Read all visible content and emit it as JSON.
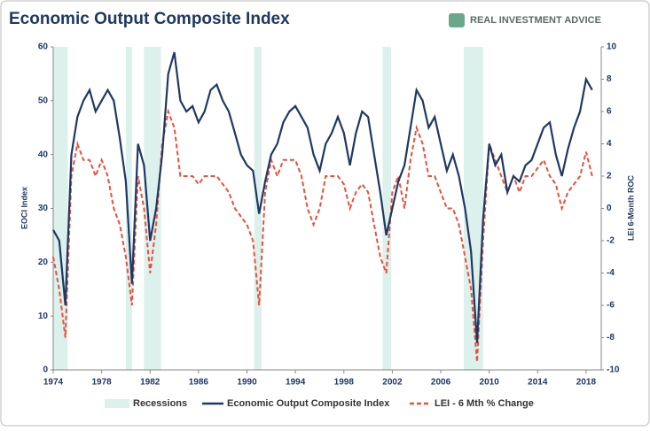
{
  "logo": "REAL INVESTMENT ADVICE",
  "chart_data": {
    "type": "line",
    "title": "Economic Output Composite Index",
    "ylabel": "EOCI Index",
    "y2label": "LEI 6-Month ROC",
    "xlim": [
      1974,
      2019.25
    ],
    "xticks": [
      1974,
      1978,
      1982,
      1986,
      1990,
      1994,
      1998,
      2002,
      2006,
      2010,
      2014,
      2018
    ],
    "ylim": [
      0,
      60
    ],
    "yticks": [
      0,
      10,
      20,
      30,
      40,
      50,
      60
    ],
    "y2lim": [
      -10,
      10
    ],
    "y2ticks": [
      -10,
      -8,
      -6,
      -4,
      -2,
      0,
      2,
      4,
      6,
      8,
      10
    ],
    "bands": {
      "name": "Recessions",
      "color": "#dcf0ec",
      "ranges": [
        [
          1974.0,
          1975.2
        ],
        [
          1980.0,
          1980.5
        ],
        [
          1981.5,
          1982.9
        ],
        [
          1990.6,
          1991.2
        ],
        [
          2001.2,
          2001.9
        ],
        [
          2007.9,
          2009.5
        ]
      ]
    },
    "x": [
      1974,
      1974.5,
      1975,
      1975.5,
      1976,
      1976.5,
      1977,
      1977.5,
      1978,
      1978.5,
      1979,
      1979.5,
      1980,
      1980.5,
      1981,
      1981.5,
      1982,
      1982.5,
      1983,
      1983.5,
      1984,
      1984.5,
      1985,
      1985.5,
      1986,
      1986.5,
      1987,
      1987.5,
      1988,
      1988.5,
      1989,
      1989.5,
      1990,
      1990.5,
      1991,
      1991.5,
      1992,
      1992.5,
      1993,
      1993.5,
      1994,
      1994.5,
      1995,
      1995.5,
      1996,
      1996.5,
      1997,
      1997.5,
      1998,
      1998.5,
      1999,
      1999.5,
      2000,
      2000.5,
      2001,
      2001.5,
      2002,
      2002.5,
      2003,
      2003.5,
      2004,
      2004.5,
      2005,
      2005.5,
      2006,
      2006.5,
      2007,
      2007.5,
      2008,
      2008.5,
      2009,
      2009.5,
      2010,
      2010.5,
      2011,
      2011.5,
      2012,
      2012.5,
      2013,
      2013.5,
      2014,
      2014.5,
      2015,
      2015.5,
      2016,
      2016.5,
      2017,
      2017.5,
      2018,
      2018.5
    ],
    "series": [
      {
        "name": "Economic Output Composite Index",
        "color": "#1f3864",
        "dash": false,
        "values": [
          26,
          24,
          12,
          40,
          47,
          50,
          52,
          48,
          50,
          52,
          50,
          43,
          35,
          16,
          42,
          38,
          24,
          30,
          40,
          55,
          59,
          50,
          48,
          49,
          46,
          48,
          52,
          53,
          50,
          48,
          44,
          40,
          38,
          37,
          29,
          35,
          40,
          42,
          46,
          48,
          49,
          47,
          45,
          40,
          37,
          42,
          44,
          47,
          44,
          38,
          44,
          48,
          47,
          40,
          33,
          25,
          30,
          35,
          38,
          45,
          52,
          50,
          45,
          47,
          42,
          37,
          40,
          36,
          30,
          22,
          5,
          28,
          42,
          38,
          40,
          33,
          36,
          35,
          38,
          39,
          42,
          45,
          46,
          40,
          36,
          41,
          45,
          48,
          54,
          52
        ]
      },
      {
        "name": "LEI - 6 Mth % Change",
        "color": "#e8503c",
        "dash": true,
        "axis": "y2",
        "values": [
          -3,
          -5,
          -8,
          2,
          4,
          3,
          3,
          2,
          3,
          2,
          0,
          -1,
          -3,
          -6,
          2,
          0,
          -4,
          -1,
          4,
          6,
          5,
          2,
          2,
          2,
          1.5,
          2,
          2,
          2,
          1.5,
          1,
          0,
          -0.5,
          -1,
          -2,
          -6,
          1,
          3,
          2,
          3,
          3,
          3,
          2,
          0,
          -1,
          0,
          2,
          2,
          2,
          1.5,
          0,
          1,
          1.5,
          1,
          -1,
          -3,
          -4,
          1,
          2,
          0,
          3,
          5,
          4,
          2,
          2,
          1,
          0,
          0,
          -1,
          -3,
          -5,
          -9.5,
          -2,
          4,
          3,
          2,
          1,
          2,
          1,
          2,
          2,
          2.5,
          3,
          2,
          1.5,
          0,
          1,
          1.5,
          2,
          3.5,
          2
        ]
      }
    ]
  }
}
